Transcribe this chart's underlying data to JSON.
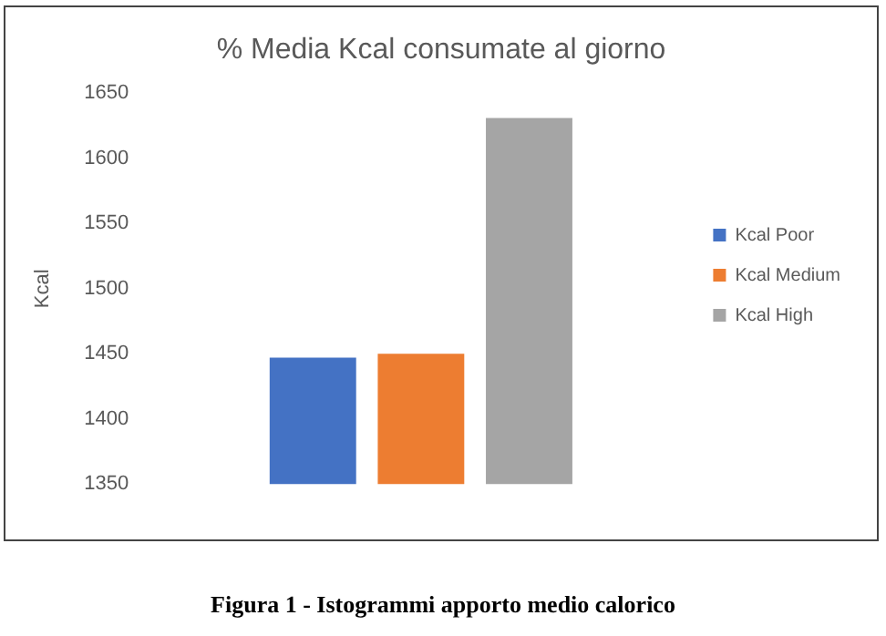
{
  "chart_data": {
    "type": "bar",
    "title": "% Media Kcal consumate al giorno",
    "ylabel": "Kcal",
    "categories": [
      null
    ],
    "series": [
      {
        "name": "Kcal Poor",
        "color": "#4472c4",
        "values": [
          1447
        ]
      },
      {
        "name": "Kcal Medium",
        "color": "#ed7d31",
        "values": [
          1450
        ]
      },
      {
        "name": "Kcal High",
        "color": "#a5a5a5",
        "values": [
          1631
        ]
      }
    ],
    "ylim": [
      1350,
      1650
    ],
    "yticks": [
      1350,
      1400,
      1450,
      1500,
      1550,
      1600,
      1650
    ],
    "grid": false,
    "legend": "right",
    "annotations": [
      "Figura 1 - Istogrammi apporto medio calorico"
    ]
  }
}
